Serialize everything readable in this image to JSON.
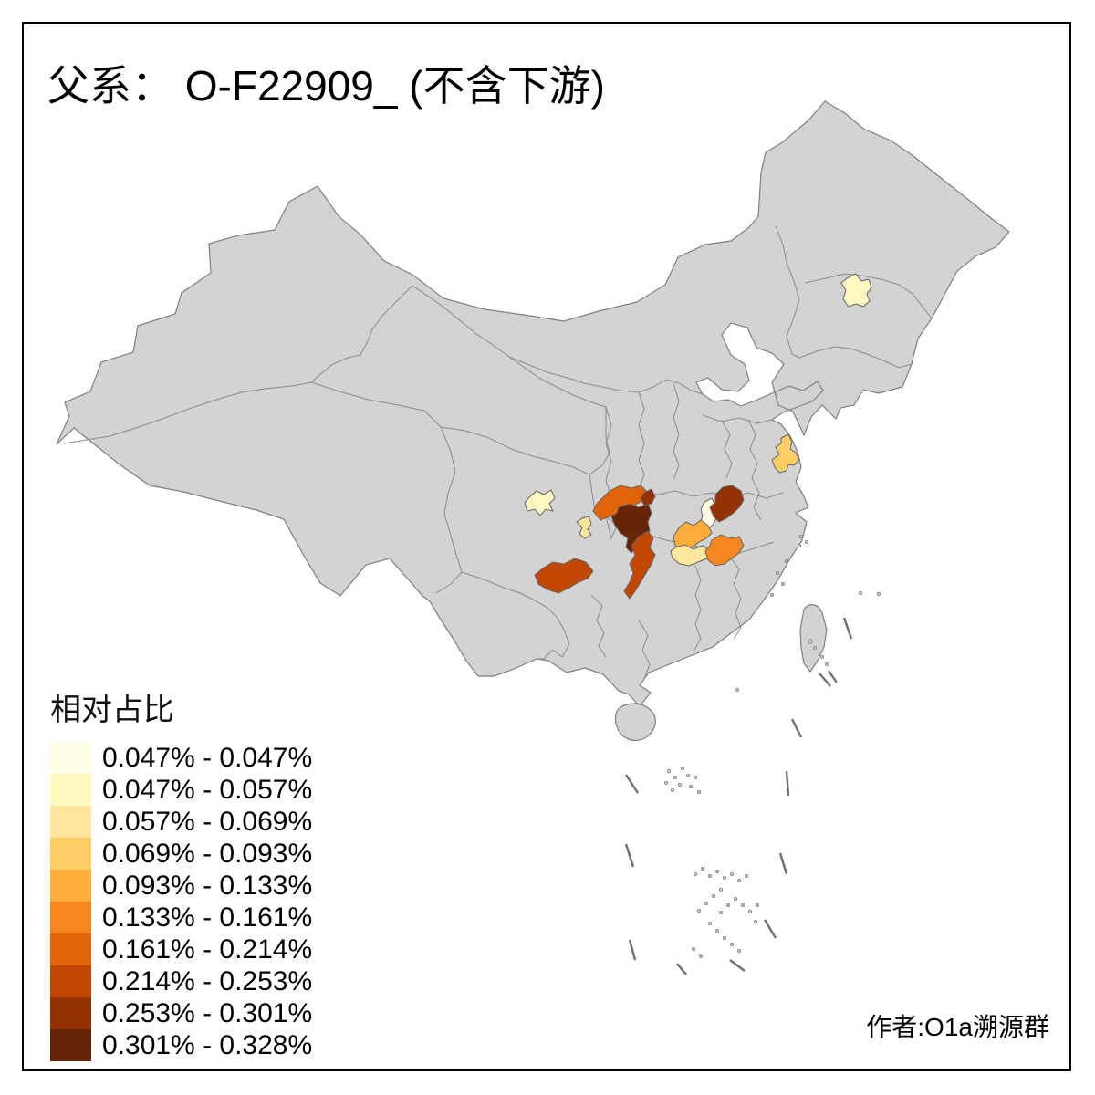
{
  "title": "父系： O-F22909_ (不含下游)",
  "author_credit": "作者:O1a溯源群",
  "legend": {
    "title": "相对占比",
    "entries": [
      {
        "label": "0.047% - 0.047%",
        "color": "#FFFFE5"
      },
      {
        "label": "0.047% - 0.057%",
        "color": "#FFF8C1"
      },
      {
        "label": "0.057% - 0.069%",
        "color": "#FEE79C"
      },
      {
        "label": "0.069% - 0.093%",
        "color": "#FECE65"
      },
      {
        "label": "0.093% - 0.133%",
        "color": "#FEAC3A"
      },
      {
        "label": "0.133% - 0.161%",
        "color": "#F68720"
      },
      {
        "label": "0.161% - 0.214%",
        "color": "#E16408"
      },
      {
        "label": "0.214% - 0.253%",
        "color": "#C14702"
      },
      {
        "label": "0.253% - 0.301%",
        "color": "#933203"
      },
      {
        "label": "0.301% - 0.328%",
        "color": "#662506"
      }
    ]
  },
  "map": {
    "base_fill": "#D3D3D3",
    "border_color": "#8a8a8a",
    "background": "#FFFFFF",
    "frame_color": "#000000",
    "regions": [
      {
        "id": "northeast-patch",
        "approx_location": "Jilin area, northeast China",
        "bin": "0.047% - 0.057%",
        "color": "#FFF8C1"
      },
      {
        "id": "east-china-patch",
        "approx_location": "north Anhui / Jiangsu border",
        "bin": "0.069% - 0.093%",
        "color": "#FECE65"
      },
      {
        "id": "west-sichuan-cream-patch",
        "approx_location": "central Sichuan basin west",
        "bin": "0.047% - 0.057%",
        "color": "#FFF8C1"
      },
      {
        "id": "small-sichuan-patch",
        "approx_location": "central Sichuan basin east",
        "bin": "0.057% - 0.069%",
        "color": "#FEE79C"
      },
      {
        "id": "ne-sichuan-orange-region",
        "approx_location": "northeast Sichuan",
        "bin": "0.161% - 0.214%",
        "color": "#E16408"
      },
      {
        "id": "dark-maroon-region",
        "approx_location": "east Sichuan / Chongqing area",
        "bin": "0.301% - 0.328%",
        "color": "#662506"
      },
      {
        "id": "small-dark-red-patch",
        "approx_location": "northeast of maroon region",
        "bin": "0.253% - 0.301%",
        "color": "#933203"
      },
      {
        "id": "hubei-white-patch",
        "approx_location": "west Hubei",
        "bin": "0.047% - 0.047%",
        "color": "#FFFFE5"
      },
      {
        "id": "hubei-dark-region",
        "approx_location": "central Hubei",
        "bin": "0.253% - 0.301%",
        "color": "#933203"
      },
      {
        "id": "gold-region",
        "approx_location": "northwest Hunan (Dongting west)",
        "bin": "0.093% - 0.133%",
        "color": "#FEAC3A"
      },
      {
        "id": "pale-yellow-region",
        "approx_location": "north Hunan (Dongting south)",
        "bin": "0.057% - 0.069%",
        "color": "#FEE79C"
      },
      {
        "id": "orange-region-east",
        "approx_location": "northeast Hunan (Dongting east)",
        "bin": "0.133% - 0.161%",
        "color": "#F68720"
      },
      {
        "id": "southwest-dark-orange",
        "approx_location": "north Guizhou",
        "bin": "0.214% - 0.253%",
        "color": "#C14702"
      },
      {
        "id": "west-hunan-vertical",
        "approx_location": "west Hunan corridor",
        "bin": "0.214% - 0.253%",
        "color": "#C14702"
      }
    ]
  },
  "chart_data": {
    "type": "choropleth-map",
    "title": "父系： O-F22909_ (不含下游)",
    "legend_title": "相对占比",
    "bins": [
      "0.047% - 0.047%",
      "0.047% - 0.057%",
      "0.057% - 0.069%",
      "0.069% - 0.093%",
      "0.093% - 0.133%",
      "0.133% - 0.161%",
      "0.161% - 0.214%",
      "0.214% - 0.253%",
      "0.253% - 0.301%",
      "0.301% - 0.328%"
    ],
    "value_range": [
      "0.047%",
      "0.328%"
    ],
    "colored_region_count": 14,
    "notes": "Prefecture-level map of China; uncolored prefectures are gray"
  }
}
